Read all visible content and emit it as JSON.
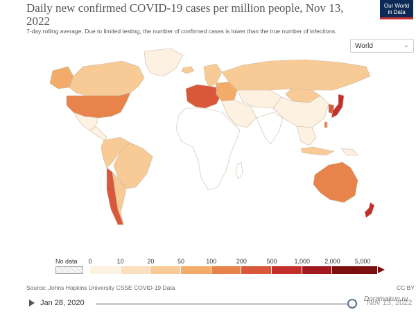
{
  "header": {
    "title": "Daily new confirmed COVID-19 cases per million people, Nov 13, 2022",
    "subtitle": "7-day rolling average. Due to limited testing, the number of confirmed cases is lower than the true number of infections.",
    "logo_line1": "Our World",
    "logo_line2": "in Data"
  },
  "controls": {
    "region_value": "World"
  },
  "legend": {
    "no_data_label": "No data",
    "ticks": [
      "0",
      "10",
      "20",
      "50",
      "100",
      "200",
      "500",
      "1,000",
      "2,000",
      "5,000"
    ],
    "bin_colors": [
      "#fdf1e1",
      "#fbe0c0",
      "#f8ca95",
      "#f2ab68",
      "#e8834b",
      "#d9573a",
      "#c3302b",
      "#a0191f",
      "#7c0f0f"
    ]
  },
  "footer": {
    "source": "Source: Johns Hopkins University CSSE COVID-19 Data",
    "license": "CC BY"
  },
  "timeline": {
    "start_label": "Jan 28, 2020",
    "end_label": "Nov 13, 2022",
    "position": 0.98
  },
  "watermark": "Doramakun.ru",
  "map_colors": {
    "canada": "#f8ca95",
    "alaska": "#f2ab68",
    "usa": "#e8834b",
    "mexico": "#fdf1e1",
    "central_america": "#fdf1e1",
    "south_america": "#f8ca95",
    "brazil": "#f8ca95",
    "chile": "#d9573a",
    "greenland": "#fdf1e1",
    "iceland": "#f8ca95",
    "europe_west": "#d9573a",
    "europe_east": "#f2ab68",
    "scandinavia": "#f8ca95",
    "russia": "#f8ca95",
    "africa": "#ffffff",
    "middle_east": "#fdf1e1",
    "central_asia": "#fdf1e1",
    "china": "#fdf1e1",
    "india": "#ffffff",
    "southeast_asia": "#fdf1e1",
    "japan": "#c3302b",
    "korea": "#d9573a",
    "taiwan": "#e8834b",
    "indonesia": "#f8ca95",
    "australia": "#e8834b",
    "new_zealand": "#c3302b",
    "papua": "#fdf1e1",
    "mongolia": "#f8ca95"
  }
}
